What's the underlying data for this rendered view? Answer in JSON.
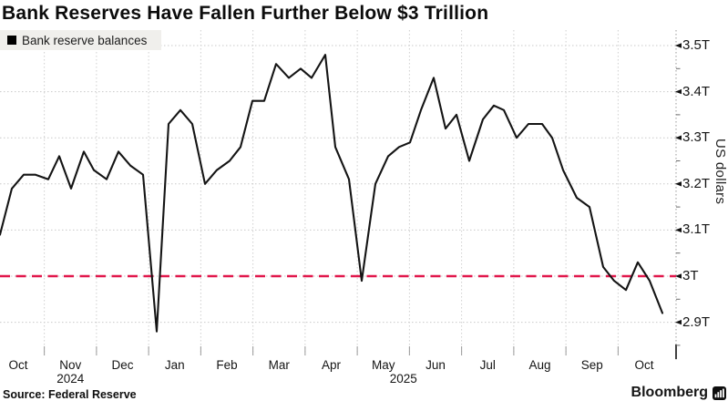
{
  "title": "Bank Reserves Have Fallen Further Below $3 Trillion",
  "legend": {
    "label": "Bank reserve balances",
    "swatch_color": "#000000",
    "swatch_icon": "black-square-icon"
  },
  "footer": {
    "source": "Source: Federal Reserve",
    "brand": "Bloomberg",
    "brand_icon": "bar-chart-icon"
  },
  "y_axis": {
    "title": "US dollars",
    "ticks": [
      {
        "label": "3.5T",
        "value": 3.5
      },
      {
        "label": "3.4T",
        "value": 3.4
      },
      {
        "label": "3.3T",
        "value": 3.3
      },
      {
        "label": "3.2T",
        "value": 3.2
      },
      {
        "label": "3.1T",
        "value": 3.1
      },
      {
        "label": "3T",
        "value": 3.0
      },
      {
        "label": "2.9T",
        "value": 2.9
      }
    ],
    "minor_tick_values": [
      3.45,
      3.35,
      3.25,
      3.15,
      3.05,
      2.95,
      2.85
    ]
  },
  "x_axis": {
    "months": [
      {
        "label": "Oct"
      },
      {
        "label": "Nov",
        "year": "2024"
      },
      {
        "label": "Dec"
      },
      {
        "label": "Jan"
      },
      {
        "label": "Feb"
      },
      {
        "label": "Mar"
      },
      {
        "label": "Apr"
      },
      {
        "label": "May",
        "year": "2025"
      },
      {
        "label": "Jun"
      },
      {
        "label": "Jul"
      },
      {
        "label": "Aug"
      },
      {
        "label": "Sep"
      },
      {
        "label": "Oct"
      }
    ]
  },
  "reference_line": {
    "value": 3.0,
    "color": "#e1184c",
    "style": "dashed"
  },
  "chart_data": {
    "type": "line",
    "title": "Bank Reserves Have Fallen Further Below $3 Trillion",
    "xlabel": "",
    "ylabel": "US dollars",
    "ylim": [
      2.85,
      3.52
    ],
    "yticks": [
      2.9,
      3.0,
      3.1,
      3.2,
      3.3,
      3.4,
      3.5
    ],
    "x_range": [
      "Oct 2024",
      "Oct 2025"
    ],
    "x_unit": "x = plot pixels 0-745 spanning Oct 2024 to Oct 2025, weekly observations; values in trillions of US dollars",
    "grid": "dotted",
    "legend_position": "top-left",
    "reference_line_y": 3.0,
    "series": [
      {
        "name": "Bank reserve balances",
        "color": "#141414",
        "points": [
          [
            0,
            3.09
          ],
          [
            13,
            3.19
          ],
          [
            26,
            3.22
          ],
          [
            39,
            3.22
          ],
          [
            53,
            3.21
          ],
          [
            65,
            3.26
          ],
          [
            78,
            3.19
          ],
          [
            92,
            3.27
          ],
          [
            103,
            3.23
          ],
          [
            117,
            3.21
          ],
          [
            130,
            3.27
          ],
          [
            143,
            3.24
          ],
          [
            157,
            3.22
          ],
          [
            172,
            2.88
          ],
          [
            185,
            3.33
          ],
          [
            198,
            3.36
          ],
          [
            211,
            3.33
          ],
          [
            225,
            3.2
          ],
          [
            238,
            3.23
          ],
          [
            252,
            3.25
          ],
          [
            264,
            3.28
          ],
          [
            277,
            3.38
          ],
          [
            290,
            3.38
          ],
          [
            303,
            3.46
          ],
          [
            317,
            3.43
          ],
          [
            330,
            3.45
          ],
          [
            342,
            3.43
          ],
          [
            357,
            3.48
          ],
          [
            368,
            3.28
          ],
          [
            383,
            3.21
          ],
          [
            397,
            2.99
          ],
          [
            412,
            3.2
          ],
          [
            426,
            3.26
          ],
          [
            438,
            3.28
          ],
          [
            450,
            3.29
          ],
          [
            462,
            3.36
          ],
          [
            476,
            3.43
          ],
          [
            489,
            3.32
          ],
          [
            501,
            3.35
          ],
          [
            515,
            3.25
          ],
          [
            530,
            3.34
          ],
          [
            542,
            3.37
          ],
          [
            553,
            3.36
          ],
          [
            567,
            3.3
          ],
          [
            580,
            3.33
          ],
          [
            595,
            3.33
          ],
          [
            606,
            3.3
          ],
          [
            618,
            3.23
          ],
          [
            633,
            3.17
          ],
          [
            647,
            3.15
          ],
          [
            662,
            3.02
          ],
          [
            674,
            2.99
          ],
          [
            687,
            2.97
          ],
          [
            700,
            3.03
          ],
          [
            713,
            2.99
          ],
          [
            727,
            2.92
          ]
        ]
      }
    ]
  }
}
